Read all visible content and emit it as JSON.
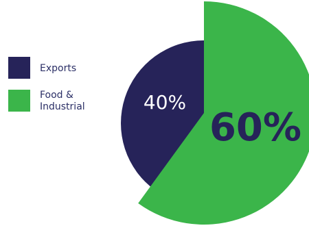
{
  "chart_data": {
    "type": "pie",
    "title": "",
    "slices": [
      {
        "label": "Exports",
        "value": 40,
        "display": "40%",
        "color": "#262359"
      },
      {
        "label": "Food &\nIndustrial",
        "value": 60,
        "display": "60%",
        "color": "#3bb54a"
      }
    ],
    "legend_position": "left",
    "exploded_slice": "Food &\nIndustrial"
  }
}
